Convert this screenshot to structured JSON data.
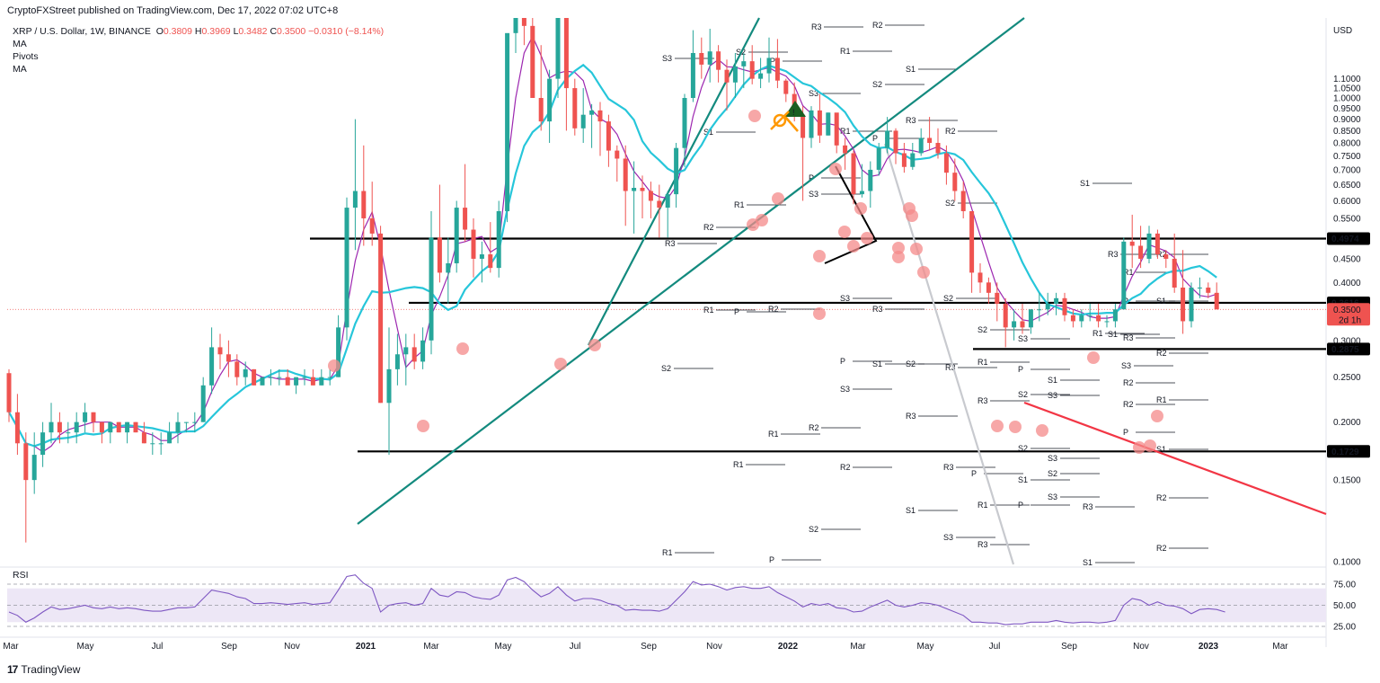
{
  "header": {
    "attribution": "CryptoFXStreet published on TradingView.com, Dec 17, 2022 07:02 UTC+8"
  },
  "legend": {
    "symbol": "XRP / U.S. Dollar, 1W, BINANCE",
    "ohlc": {
      "o": "0.3809",
      "h": "0.3969",
      "l": "0.3482",
      "c": "0.3500",
      "chg": "−0.0310 (−8.14%)"
    },
    "studies": [
      "MA",
      "Pivots",
      "MA"
    ]
  },
  "rsi_panel": {
    "title": "RSI"
  },
  "footer": {
    "brand": "TradingView",
    "logo": "17"
  },
  "colors": {
    "bull": "#26a69a",
    "bear": "#ef5350",
    "ma_fast": "#9c27b0",
    "ma_slow": "#26c6da",
    "trend_green": "#138a7e",
    "trend_red": "#f23645",
    "level": "#000000",
    "marker": "#f48a8a",
    "rsi_line": "#7e57c2",
    "rsi_band": "#ede7f6"
  },
  "chart_data": {
    "type": "candlestick",
    "title": "XRP / U.S. Dollar, 1W, BINANCE",
    "currency": "USD",
    "y_scale": "log",
    "ylim": [
      0.1,
      1.15
    ],
    "y_ticks": [
      "1.1000",
      "1.0500",
      "1.0000",
      "0.9500",
      "0.9000",
      "0.8500",
      "0.8000",
      "0.7500",
      "0.7000",
      "0.6500",
      "0.6000",
      "0.5500",
      "0.5000",
      "0.4500",
      "0.4000",
      "0.3500",
      "0.3000",
      "0.2500",
      "0.2000",
      "0.1500",
      "0.1000"
    ],
    "x_ticks": [
      "Mar",
      "May",
      "Jul",
      "Sep",
      "Nov",
      "2021",
      "Mar",
      "May",
      "Jul",
      "Sep",
      "Nov",
      "2022",
      "Mar",
      "May",
      "Jul",
      "Sep",
      "Nov",
      "2023",
      "Mar"
    ],
    "current_price": {
      "value": "0.3500",
      "countdown": "2d 1h"
    },
    "horizontal_levels": [
      {
        "label": "0.4974",
        "value": 0.4974
      },
      {
        "label": "0.3616",
        "value": 0.3616
      },
      {
        "label": "0.2875",
        "value": 0.2875
      },
      {
        "label": "0.1729",
        "value": 0.1729
      }
    ],
    "candles_weekly_approx": [
      [
        0.255,
        0.26,
        0.2,
        0.21
      ],
      [
        0.21,
        0.23,
        0.17,
        0.18
      ],
      [
        0.18,
        0.19,
        0.11,
        0.15
      ],
      [
        0.15,
        0.19,
        0.14,
        0.17
      ],
      [
        0.17,
        0.2,
        0.16,
        0.19
      ],
      [
        0.19,
        0.22,
        0.18,
        0.2
      ],
      [
        0.2,
        0.21,
        0.18,
        0.19
      ],
      [
        0.19,
        0.2,
        0.18,
        0.19
      ],
      [
        0.19,
        0.21,
        0.18,
        0.2
      ],
      [
        0.2,
        0.22,
        0.19,
        0.21
      ],
      [
        0.21,
        0.21,
        0.19,
        0.2
      ],
      [
        0.2,
        0.2,
        0.18,
        0.19
      ],
      [
        0.19,
        0.2,
        0.18,
        0.2
      ],
      [
        0.2,
        0.2,
        0.19,
        0.19
      ],
      [
        0.19,
        0.2,
        0.18,
        0.2
      ],
      [
        0.2,
        0.2,
        0.19,
        0.19
      ],
      [
        0.19,
        0.2,
        0.18,
        0.18
      ],
      [
        0.18,
        0.19,
        0.17,
        0.18
      ],
      [
        0.18,
        0.19,
        0.17,
        0.18
      ],
      [
        0.18,
        0.2,
        0.18,
        0.19
      ],
      [
        0.19,
        0.21,
        0.18,
        0.2
      ],
      [
        0.2,
        0.2,
        0.19,
        0.2
      ],
      [
        0.2,
        0.21,
        0.19,
        0.2
      ],
      [
        0.2,
        0.25,
        0.2,
        0.24
      ],
      [
        0.24,
        0.32,
        0.23,
        0.29
      ],
      [
        0.29,
        0.31,
        0.26,
        0.28
      ],
      [
        0.28,
        0.3,
        0.25,
        0.27
      ],
      [
        0.27,
        0.28,
        0.24,
        0.25
      ],
      [
        0.25,
        0.27,
        0.24,
        0.26
      ],
      [
        0.26,
        0.26,
        0.24,
        0.24
      ],
      [
        0.24,
        0.25,
        0.24,
        0.25
      ],
      [
        0.25,
        0.26,
        0.24,
        0.25
      ],
      [
        0.25,
        0.26,
        0.24,
        0.25
      ],
      [
        0.25,
        0.26,
        0.24,
        0.24
      ],
      [
        0.24,
        0.25,
        0.23,
        0.25
      ],
      [
        0.25,
        0.26,
        0.24,
        0.25
      ],
      [
        0.25,
        0.26,
        0.24,
        0.24
      ],
      [
        0.24,
        0.26,
        0.24,
        0.25
      ],
      [
        0.25,
        0.26,
        0.24,
        0.25
      ],
      [
        0.25,
        0.34,
        0.25,
        0.32
      ],
      [
        0.32,
        0.61,
        0.3,
        0.58
      ],
      [
        0.58,
        0.9,
        0.47,
        0.63
      ],
      [
        0.63,
        0.79,
        0.48,
        0.55
      ],
      [
        0.55,
        0.66,
        0.48,
        0.51
      ],
      [
        0.51,
        0.53,
        0.22,
        0.22
      ],
      [
        0.22,
        0.32,
        0.17,
        0.26
      ],
      [
        0.26,
        0.31,
        0.24,
        0.28
      ],
      [
        0.28,
        0.31,
        0.24,
        0.29
      ],
      [
        0.29,
        0.31,
        0.26,
        0.27
      ],
      [
        0.27,
        0.32,
        0.26,
        0.3
      ],
      [
        0.3,
        0.57,
        0.28,
        0.5
      ],
      [
        0.5,
        0.65,
        0.4,
        0.42
      ],
      [
        0.42,
        0.5,
        0.36,
        0.44
      ],
      [
        0.44,
        0.6,
        0.42,
        0.58
      ],
      [
        0.58,
        0.72,
        0.49,
        0.52
      ],
      [
        0.52,
        0.55,
        0.41,
        0.45
      ],
      [
        0.45,
        0.49,
        0.4,
        0.46
      ],
      [
        0.46,
        0.54,
        0.42,
        0.43
      ],
      [
        0.43,
        0.6,
        0.41,
        0.57
      ],
      [
        0.57,
        1.3,
        0.54,
        1.38
      ],
      [
        1.38,
        1.85,
        1.25,
        1.62
      ],
      [
        1.62,
        1.8,
        1.3,
        1.43
      ],
      [
        1.43,
        1.75,
        1.05,
        1.0
      ],
      [
        1.0,
        1.3,
        0.85,
        0.89
      ],
      [
        0.89,
        1.15,
        0.8,
        1.1
      ],
      [
        1.1,
        1.75,
        1.0,
        1.53
      ],
      [
        1.53,
        1.6,
        0.85,
        1.05
      ],
      [
        1.05,
        1.1,
        0.83,
        0.86
      ],
      [
        0.86,
        1.05,
        0.8,
        0.92
      ],
      [
        0.92,
        0.97,
        0.78,
        0.94
      ],
      [
        0.94,
        0.98,
        0.75,
        0.89
      ],
      [
        0.89,
        0.92,
        0.71,
        0.77
      ],
      [
        0.77,
        0.79,
        0.66,
        0.74
      ],
      [
        0.74,
        0.79,
        0.53,
        0.63
      ],
      [
        0.63,
        0.73,
        0.51,
        0.64
      ],
      [
        0.64,
        0.68,
        0.55,
        0.63
      ],
      [
        0.63,
        0.66,
        0.55,
        0.6
      ],
      [
        0.6,
        0.65,
        0.5,
        0.58
      ],
      [
        0.58,
        0.63,
        0.5,
        0.62
      ],
      [
        0.62,
        0.8,
        0.58,
        0.78
      ],
      [
        0.78,
        1.02,
        0.71,
        1.0
      ],
      [
        1.0,
        1.4,
        0.98,
        1.25
      ],
      [
        1.25,
        1.35,
        1.1,
        1.18
      ],
      [
        1.18,
        1.41,
        1.08,
        1.26
      ],
      [
        1.26,
        1.3,
        1.08,
        1.15
      ],
      [
        1.15,
        1.21,
        0.94,
        1.08
      ],
      [
        1.08,
        1.25,
        1.0,
        1.17
      ],
      [
        1.17,
        1.25,
        1.05,
        1.2
      ],
      [
        1.2,
        1.3,
        1.07,
        1.1
      ],
      [
        1.1,
        1.22,
        1.05,
        1.13
      ],
      [
        1.13,
        1.35,
        1.08,
        1.22
      ],
      [
        1.22,
        1.34,
        1.05,
        1.09
      ],
      [
        1.09,
        1.1,
        0.98,
        1.02
      ],
      [
        1.02,
        1.08,
        0.89,
        0.92
      ],
      [
        0.92,
        0.96,
        0.6,
        0.82
      ],
      [
        0.82,
        0.96,
        0.78,
        0.94
      ],
      [
        0.94,
        1.02,
        0.8,
        0.83
      ],
      [
        0.83,
        0.93,
        0.83,
        0.93
      ],
      [
        0.93,
        0.9,
        0.76,
        0.79
      ],
      [
        0.79,
        0.82,
        0.7,
        0.76
      ],
      [
        0.76,
        0.77,
        0.59,
        0.62
      ],
      [
        0.62,
        0.72,
        0.61,
        0.63
      ],
      [
        0.63,
        0.73,
        0.58,
        0.7
      ],
      [
        0.7,
        0.8,
        0.68,
        0.78
      ],
      [
        0.78,
        0.91,
        0.76,
        0.85
      ],
      [
        0.85,
        0.86,
        0.72,
        0.76
      ],
      [
        0.76,
        0.8,
        0.69,
        0.71
      ],
      [
        0.71,
        0.8,
        0.7,
        0.76
      ],
      [
        0.76,
        0.86,
        0.75,
        0.82
      ],
      [
        0.82,
        0.91,
        0.77,
        0.8
      ],
      [
        0.8,
        0.86,
        0.74,
        0.76
      ],
      [
        0.76,
        0.79,
        0.65,
        0.69
      ],
      [
        0.69,
        0.74,
        0.6,
        0.63
      ],
      [
        0.63,
        0.66,
        0.55,
        0.57
      ],
      [
        0.57,
        0.57,
        0.38,
        0.42
      ],
      [
        0.42,
        0.44,
        0.38,
        0.4
      ],
      [
        0.4,
        0.41,
        0.36,
        0.38
      ],
      [
        0.38,
        0.4,
        0.33,
        0.36
      ],
      [
        0.36,
        0.37,
        0.29,
        0.32
      ],
      [
        0.32,
        0.35,
        0.3,
        0.33
      ],
      [
        0.33,
        0.36,
        0.31,
        0.32
      ],
      [
        0.32,
        0.35,
        0.31,
        0.35
      ],
      [
        0.35,
        0.38,
        0.33,
        0.35
      ],
      [
        0.35,
        0.38,
        0.34,
        0.36
      ],
      [
        0.36,
        0.38,
        0.34,
        0.37
      ],
      [
        0.37,
        0.38,
        0.33,
        0.34
      ],
      [
        0.34,
        0.35,
        0.32,
        0.33
      ],
      [
        0.33,
        0.35,
        0.32,
        0.34
      ],
      [
        0.34,
        0.36,
        0.33,
        0.34
      ],
      [
        0.34,
        0.36,
        0.32,
        0.33
      ],
      [
        0.33,
        0.34,
        0.32,
        0.33
      ],
      [
        0.33,
        0.36,
        0.32,
        0.35
      ],
      [
        0.35,
        0.5,
        0.35,
        0.49
      ],
      [
        0.49,
        0.56,
        0.43,
        0.48
      ],
      [
        0.48,
        0.53,
        0.43,
        0.45
      ],
      [
        0.45,
        0.53,
        0.44,
        0.51
      ],
      [
        0.51,
        0.52,
        0.45,
        0.46
      ],
      [
        0.46,
        0.47,
        0.43,
        0.45
      ],
      [
        0.45,
        0.51,
        0.38,
        0.39
      ],
      [
        0.39,
        0.47,
        0.31,
        0.33
      ],
      [
        0.33,
        0.4,
        0.32,
        0.39
      ],
      [
        0.39,
        0.41,
        0.37,
        0.39
      ],
      [
        0.39,
        0.4,
        0.37,
        0.38
      ],
      [
        0.38,
        0.4,
        0.35,
        0.35
      ]
    ],
    "moving_averages": [
      {
        "name": "MA",
        "color": "#9c27b0"
      },
      {
        "name": "MA",
        "color": "#26c6da"
      }
    ],
    "pivot_labels": [
      "R3",
      "R2",
      "R1",
      "P",
      "S1",
      "S2",
      "S3"
    ],
    "rsi": {
      "ticks": [
        "75.00",
        "50.00",
        "25.00"
      ],
      "band": [
        30,
        70
      ],
      "values_approx": [
        42,
        38,
        30,
        35,
        42,
        48,
        45,
        46,
        48,
        50,
        47,
        46,
        48,
        46,
        47,
        46,
        44,
        43,
        43,
        45,
        47,
        47,
        48,
        58,
        68,
        66,
        64,
        60,
        58,
        52,
        52,
        53,
        52,
        51,
        52,
        53,
        51,
        52,
        53,
        68,
        84,
        86,
        76,
        70,
        42,
        50,
        52,
        53,
        50,
        52,
        70,
        62,
        60,
        66,
        65,
        60,
        58,
        57,
        62,
        80,
        83,
        78,
        68,
        60,
        64,
        72,
        62,
        55,
        58,
        58,
        56,
        52,
        50,
        44,
        45,
        44,
        44,
        43,
        46,
        56,
        66,
        78,
        74,
        75,
        72,
        68,
        71,
        72,
        70,
        70,
        72,
        65,
        60,
        55,
        48,
        52,
        50,
        52,
        47,
        46,
        42,
        43,
        48,
        52,
        56,
        50,
        48,
        50,
        53,
        52,
        50,
        46,
        42,
        38,
        30,
        30,
        29,
        29,
        27,
        28,
        28,
        30,
        30,
        30,
        32,
        30,
        29,
        30,
        30,
        29,
        30,
        32,
        50,
        58,
        56,
        50,
        54,
        50,
        49,
        46,
        40,
        45,
        46,
        45,
        42
      ]
    }
  }
}
